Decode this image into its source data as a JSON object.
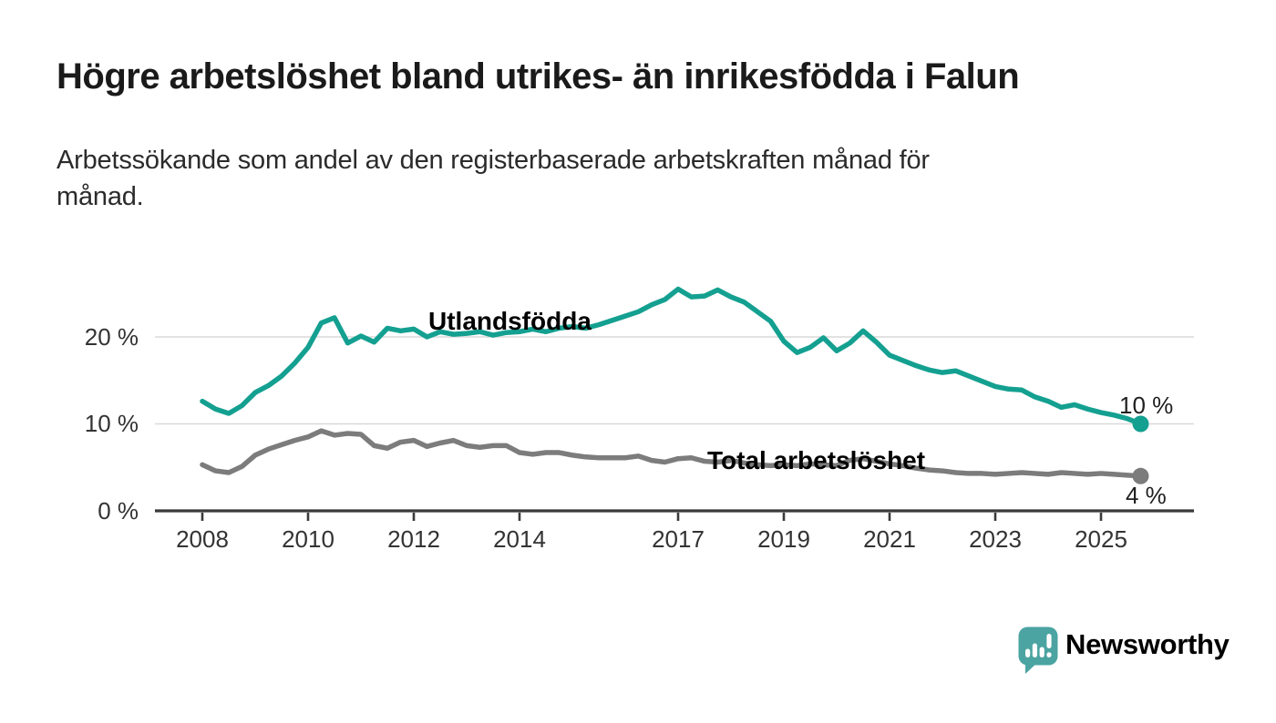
{
  "header": {
    "title": "Högre arbetslöshet bland utrikes- än inrikesfödda i Falun",
    "subtitle_line1": "Arbetssökande som andel av den registerbaserade arbetskraften månad för",
    "subtitle_line2": "månad."
  },
  "colors": {
    "accent_teal": "#14a091",
    "series_gray": "#7c7c7c",
    "axis": "#3a3a3a",
    "grid": "#d9d9d9",
    "tick_text": "#333333",
    "value_text": "#1f1f1f",
    "brand_teal": "#3f9e9c",
    "brand_icon_bg": "#4ba4a1"
  },
  "chart_data": {
    "type": "line",
    "title": "Arbetssökande som andel av den registerbaserade arbetskraften månad för månad",
    "unit": "%",
    "grid": "horizontal",
    "legend": "inline-labels",
    "x_axis": {
      "tick_years": [
        2008,
        2010,
        2012,
        2014,
        2017,
        2019,
        2021,
        2023,
        2025
      ],
      "tick_labels": [
        "2008",
        "2010",
        "2012",
        "2014",
        "2017",
        "2019",
        "2021",
        "2023",
        "2025"
      ],
      "range_years": [
        2007.1,
        2026.8
      ]
    },
    "y_axis": {
      "ticks_pct": [
        20,
        10,
        0
      ],
      "tick_labels": [
        "20 %",
        "10 %",
        "0 %"
      ],
      "range": [
        0,
        27
      ]
    },
    "x": [
      2008,
      2008.25,
      2008.5,
      2008.75,
      2009,
      2009.25,
      2009.5,
      2009.75,
      2010,
      2010.25,
      2010.5,
      2010.75,
      2011,
      2011.25,
      2011.5,
      2011.75,
      2012,
      2012.25,
      2012.5,
      2012.75,
      2013,
      2013.25,
      2013.5,
      2013.75,
      2014,
      2014.25,
      2014.5,
      2014.75,
      2015,
      2015.25,
      2015.5,
      2015.75,
      2016,
      2016.25,
      2016.5,
      2016.75,
      2017,
      2017.25,
      2017.5,
      2017.75,
      2018,
      2018.25,
      2018.5,
      2018.75,
      2019,
      2019.25,
      2019.5,
      2019.75,
      2020,
      2020.25,
      2020.5,
      2020.75,
      2021,
      2021.25,
      2021.5,
      2021.75,
      2022,
      2022.25,
      2022.5,
      2022.75,
      2023,
      2023.25,
      2023.5,
      2023.75,
      2024,
      2024.25,
      2024.5,
      2024.75,
      2025,
      2025.25,
      2025.5,
      2025.75
    ],
    "series": [
      {
        "name": "Utlandsfödda",
        "color": "#14a091",
        "end_label": "10 %",
        "end_value": 10,
        "values": [
          12.6,
          11.7,
          11.2,
          12.1,
          13.6,
          14.4,
          15.5,
          17.0,
          18.8,
          21.6,
          22.2,
          19.3,
          20.1,
          19.4,
          21.0,
          20.7,
          20.9,
          20.0,
          20.6,
          20.3,
          20.4,
          20.6,
          20.2,
          20.5,
          20.6,
          20.9,
          20.6,
          21.0,
          21.2,
          21.0,
          21.4,
          21.9,
          22.4,
          22.9,
          23.7,
          24.3,
          25.5,
          24.6,
          24.7,
          25.4,
          24.6,
          24.0,
          22.9,
          21.8,
          19.5,
          18.2,
          18.8,
          19.9,
          18.4,
          19.3,
          20.7,
          19.4,
          17.9,
          17.3,
          16.7,
          16.2,
          15.9,
          16.1,
          15.5,
          14.9,
          14.3,
          14.0,
          13.9,
          13.1,
          12.6,
          11.9,
          12.2,
          11.7,
          11.3,
          11.0,
          10.6,
          10.0
        ]
      },
      {
        "name": "Total arbetslöshet",
        "color": "#7c7c7c",
        "end_label": "4 %",
        "end_value": 4,
        "values": [
          5.3,
          4.6,
          4.4,
          5.1,
          6.4,
          7.1,
          7.6,
          8.1,
          8.5,
          9.2,
          8.7,
          8.9,
          8.8,
          7.5,
          7.2,
          7.9,
          8.1,
          7.4,
          7.8,
          8.1,
          7.5,
          7.3,
          7.5,
          7.5,
          6.7,
          6.5,
          6.7,
          6.7,
          6.4,
          6.2,
          6.1,
          6.1,
          6.1,
          6.3,
          5.8,
          5.6,
          6.0,
          6.1,
          5.7,
          5.6,
          5.8,
          5.5,
          5.3,
          5.2,
          5.3,
          5.2,
          5.4,
          5.3,
          5.2,
          5.8,
          6.0,
          5.7,
          5.4,
          5.2,
          4.9,
          4.7,
          4.6,
          4.4,
          4.3,
          4.3,
          4.2,
          4.3,
          4.4,
          4.3,
          4.2,
          4.4,
          4.3,
          4.2,
          4.3,
          4.2,
          4.1,
          4.0
        ]
      }
    ]
  },
  "branding": {
    "wordmark": "Newsworthy",
    "logo_icon": "speech-bubble-bar-chart"
  }
}
